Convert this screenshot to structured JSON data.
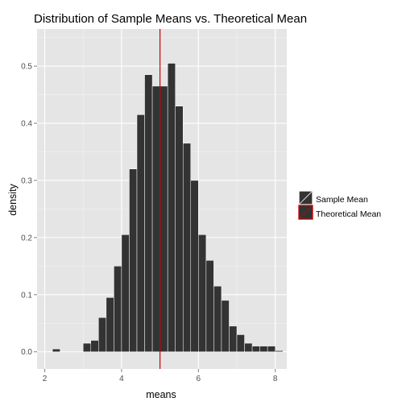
{
  "chart_data": {
    "type": "bar",
    "title": "Distribution of Sample Means vs. Theoretical Mean",
    "xlabel": "means",
    "ylabel": "density",
    "xlim": [
      1.8,
      8.3
    ],
    "ylim": [
      -0.03,
      0.565
    ],
    "x_ticks": [
      2,
      4,
      6,
      8
    ],
    "x_tick_labels": [
      "2",
      "4",
      "6",
      "8"
    ],
    "y_ticks": [
      0.0,
      0.1,
      0.2,
      0.3,
      0.4,
      0.5
    ],
    "y_tick_labels": [
      "0.0",
      "0.1",
      "0.2",
      "0.3",
      "0.4",
      "0.5"
    ],
    "grid": true,
    "legend_position": "right",
    "bin_width": 0.2,
    "bins": [
      {
        "x": 2.3,
        "density": 0.005
      },
      {
        "x": 2.5,
        "density": 0.0
      },
      {
        "x": 2.7,
        "density": 0.0
      },
      {
        "x": 2.9,
        "density": 0.0
      },
      {
        "x": 3.1,
        "density": 0.015
      },
      {
        "x": 3.3,
        "density": 0.02
      },
      {
        "x": 3.5,
        "density": 0.06
      },
      {
        "x": 3.7,
        "density": 0.095
      },
      {
        "x": 3.9,
        "density": 0.15
      },
      {
        "x": 4.1,
        "density": 0.205
      },
      {
        "x": 4.3,
        "density": 0.32
      },
      {
        "x": 4.5,
        "density": 0.415
      },
      {
        "x": 4.7,
        "density": 0.485
      },
      {
        "x": 4.9,
        "density": 0.465
      },
      {
        "x": 5.1,
        "density": 0.465
      },
      {
        "x": 5.3,
        "density": 0.505
      },
      {
        "x": 5.5,
        "density": 0.43
      },
      {
        "x": 5.7,
        "density": 0.365
      },
      {
        "x": 5.9,
        "density": 0.3
      },
      {
        "x": 6.1,
        "density": 0.205
      },
      {
        "x": 6.3,
        "density": 0.16
      },
      {
        "x": 6.5,
        "density": 0.115
      },
      {
        "x": 6.7,
        "density": 0.09
      },
      {
        "x": 6.9,
        "density": 0.045
      },
      {
        "x": 7.1,
        "density": 0.03
      },
      {
        "x": 7.3,
        "density": 0.015
      },
      {
        "x": 7.5,
        "density": 0.01
      },
      {
        "x": 7.7,
        "density": 0.01
      },
      {
        "x": 7.9,
        "density": 0.01
      },
      {
        "x": 8.1,
        "density": 0.002
      }
    ],
    "bar_fill": "#333333",
    "bar_outline": "#ffffff",
    "panel_background": "#e5e5e5",
    "vline": {
      "x": 5.0,
      "color": "#cc0000"
    },
    "legend": [
      {
        "label": "Sample Mean",
        "fill": "#333333",
        "outline": "#ffffff"
      },
      {
        "label": "Theoretical Mean",
        "fill": "#333333",
        "outline": "#cc0000"
      }
    ]
  }
}
